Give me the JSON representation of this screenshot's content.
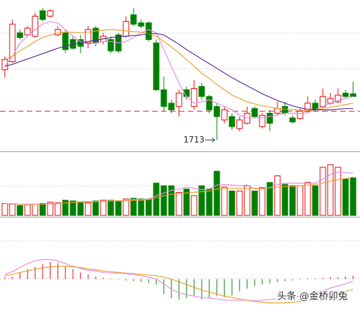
{
  "chart_data": [
    {
      "type": "candlestick",
      "up_color": "#e00000",
      "down_color": "#008000",
      "ylim": [
        1698,
        1918
      ],
      "reference_line": 1756,
      "reference_color": "#d02020",
      "annotations": [
        {
          "text": "1713"
        }
      ],
      "ohlc": [
        [
          1818,
          1838,
          1806,
          1833
        ],
        [
          1830,
          1893,
          1828,
          1886
        ],
        [
          1873,
          1878,
          1863,
          1866
        ],
        [
          1870,
          1883,
          1868,
          1880
        ],
        [
          1868,
          1903,
          1866,
          1898
        ],
        [
          1906,
          1910,
          1890,
          1893
        ],
        [
          1898,
          1908,
          1896,
          1906
        ],
        [
          1870,
          1883,
          1868,
          1878
        ],
        [
          1873,
          1878,
          1843,
          1848
        ],
        [
          1863,
          1868,
          1848,
          1850
        ],
        [
          1863,
          1870,
          1843,
          1853
        ],
        [
          1858,
          1883,
          1850,
          1878
        ],
        [
          1880,
          1883,
          1853,
          1858
        ],
        [
          1860,
          1873,
          1856,
          1868
        ],
        [
          1863,
          1868,
          1843,
          1846
        ],
        [
          1870,
          1873,
          1843,
          1846
        ],
        [
          1868,
          1898,
          1866,
          1890
        ],
        [
          1900,
          1910,
          1883,
          1886
        ],
        [
          1888,
          1893,
          1880,
          1883
        ],
        [
          1888,
          1890,
          1860,
          1863
        ],
        [
          1858,
          1863,
          1786,
          1788
        ],
        [
          1788,
          1808,
          1756,
          1763
        ],
        [
          1768,
          1773,
          1753,
          1758
        ],
        [
          1763,
          1788,
          1748,
          1783
        ],
        [
          1788,
          1793,
          1773,
          1778
        ],
        [
          1763,
          1803,
          1758,
          1790
        ],
        [
          1793,
          1798,
          1773,
          1778
        ],
        [
          1778,
          1780,
          1753,
          1758
        ],
        [
          1763,
          1768,
          1713,
          1748
        ],
        [
          1743,
          1763,
          1738,
          1758
        ],
        [
          1748,
          1753,
          1728,
          1733
        ],
        [
          1730,
          1748,
          1726,
          1743
        ],
        [
          1738,
          1763,
          1736,
          1753
        ],
        [
          1760,
          1763,
          1746,
          1748
        ],
        [
          1733,
          1753,
          1730,
          1750
        ],
        [
          1753,
          1758,
          1726,
          1738
        ],
        [
          1753,
          1770,
          1750,
          1760
        ],
        [
          1763,
          1770,
          1750,
          1753
        ],
        [
          1746,
          1750,
          1738,
          1740
        ],
        [
          1745,
          1760,
          1743,
          1756
        ],
        [
          1756,
          1778,
          1753,
          1768
        ],
        [
          1768,
          1773,
          1756,
          1758
        ],
        [
          1763,
          1790,
          1760,
          1778
        ],
        [
          1768,
          1783,
          1766,
          1775
        ],
        [
          1770,
          1790,
          1768,
          1780
        ],
        [
          1783,
          1788,
          1776,
          1778
        ],
        [
          1782,
          1800,
          1778,
          1778
        ]
      ],
      "lines": [
        {
          "color": "#e58ae5",
          "values": [
            1823,
            1838,
            1858,
            1868,
            1878,
            1886,
            1890,
            1888,
            1878,
            1868,
            1860,
            1856,
            1858,
            1860,
            1860,
            1858,
            1860,
            1866,
            1873,
            1878,
            1873,
            1848,
            1823,
            1798,
            1778,
            1768,
            1770,
            1773,
            1768,
            1763,
            1758,
            1750,
            1746,
            1746,
            1746,
            1748,
            1750,
            1753,
            1753,
            1752,
            1754,
            1758,
            1763,
            1768,
            1772,
            1775,
            1778
          ]
        },
        {
          "color": "#e8a030",
          "values": [
            1833,
            1838,
            1846,
            1853,
            1860,
            1866,
            1870,
            1873,
            1874,
            1874,
            1873,
            1874,
            1876,
            1877,
            1878,
            1877,
            1876,
            1875,
            1874,
            1872,
            1868,
            1860,
            1852,
            1843,
            1833,
            1823,
            1813,
            1805,
            1796,
            1788,
            1780,
            1775,
            1770,
            1767,
            1764,
            1762,
            1760,
            1759,
            1758,
            1758,
            1757,
            1758,
            1760,
            1762,
            1764,
            1766,
            1768
          ]
        },
        {
          "color": "#5a2a9a",
          "values": [
            1823,
            1826,
            1830,
            1834,
            1838,
            1842,
            1846,
            1850,
            1853,
            1856,
            1858,
            1860,
            1862,
            1864,
            1866,
            1867,
            1868,
            1869,
            1870,
            1872,
            1872,
            1870,
            1863,
            1856,
            1848,
            1841,
            1834,
            1827,
            1820,
            1813,
            1806,
            1800,
            1794,
            1788,
            1782,
            1777,
            1772,
            1768,
            1764,
            1761,
            1759,
            1758,
            1758,
            1758,
            1759,
            1760,
            1760
          ]
        }
      ]
    },
    {
      "type": "volume",
      "ylim": [
        0,
        95
      ],
      "values": [
        18,
        17,
        15,
        16,
        17,
        18,
        20,
        19,
        23,
        22,
        20,
        19,
        22,
        23,
        23,
        22,
        25,
        26,
        25,
        25,
        49,
        45,
        45,
        35,
        40,
        30,
        45,
        40,
        67,
        43,
        37,
        37,
        45,
        37,
        42,
        50,
        60,
        47,
        45,
        45,
        50,
        45,
        73,
        77,
        73,
        55,
        57
      ],
      "lines": [
        {
          "color": "#e58ae5",
          "values": [
            18,
            17,
            17,
            16,
            17,
            17,
            17,
            18,
            19,
            20,
            21,
            21,
            21,
            21,
            22,
            22,
            23,
            24,
            24,
            25,
            30,
            34,
            38,
            40,
            43,
            41,
            39,
            40,
            46,
            47,
            46,
            45,
            46,
            40,
            40,
            42,
            47,
            49,
            49,
            49,
            49,
            49,
            55,
            62,
            66,
            65,
            64
          ]
        },
        {
          "color": "#e8a030",
          "values": [
            18,
            18,
            17,
            17,
            17,
            17,
            18,
            18,
            19,
            20,
            20,
            20,
            21,
            21,
            22,
            22,
            22,
            23,
            23,
            24,
            27,
            30,
            32,
            33,
            34,
            35,
            36,
            37,
            40,
            41,
            41,
            41,
            41,
            41,
            41,
            42,
            43,
            44,
            44,
            45,
            46,
            47,
            49,
            52,
            54,
            56,
            58
          ]
        }
      ]
    },
    {
      "type": "macd",
      "ylim": [
        -44,
        90
      ],
      "up_color": "#e00000",
      "down_color": "#008000",
      "values": [
        3,
        4,
        10,
        15,
        18,
        22,
        25,
        24,
        20,
        15,
        10,
        7,
        4,
        2,
        1,
        -1,
        -2,
        -3,
        -4,
        -6,
        -8,
        -22,
        -28,
        -30,
        -28,
        -25,
        -30,
        -28,
        -25,
        -27,
        -24,
        -18,
        -14,
        -10,
        -8,
        -6,
        -4,
        -3,
        -2,
        -1,
        1,
        1,
        2,
        3,
        3,
        4,
        5
      ],
      "lines": [
        {
          "color": "#e58ae5",
          "values": [
            7,
            11,
            17,
            23,
            27,
            29,
            29,
            27,
            23,
            19,
            16,
            13,
            12,
            10,
            9,
            9,
            8,
            7,
            5,
            3,
            0,
            -7,
            -15,
            -20,
            -23,
            -25,
            -27,
            -28,
            -29,
            -31,
            -31,
            -31,
            -31,
            -32,
            -31,
            -30,
            -29,
            -28,
            -27,
            -25,
            -23,
            -20,
            -17,
            -13,
            -10,
            -7,
            -3
          ]
        },
        {
          "color": "#e8a030",
          "values": [
            5,
            7,
            10,
            12,
            15,
            17,
            18,
            19,
            19,
            18,
            17,
            15,
            14,
            12,
            11,
            10,
            9,
            8,
            7,
            6,
            5,
            3,
            0,
            -4,
            -8,
            -12,
            -16,
            -19,
            -22,
            -25,
            -27,
            -29,
            -31,
            -33,
            -34,
            -35,
            -35,
            -35,
            -34,
            -33,
            -31,
            -29,
            -27,
            -24,
            -21,
            -18,
            -15
          ]
        }
      ]
    }
  ],
  "watermark": "头条 @金桥卯兔"
}
